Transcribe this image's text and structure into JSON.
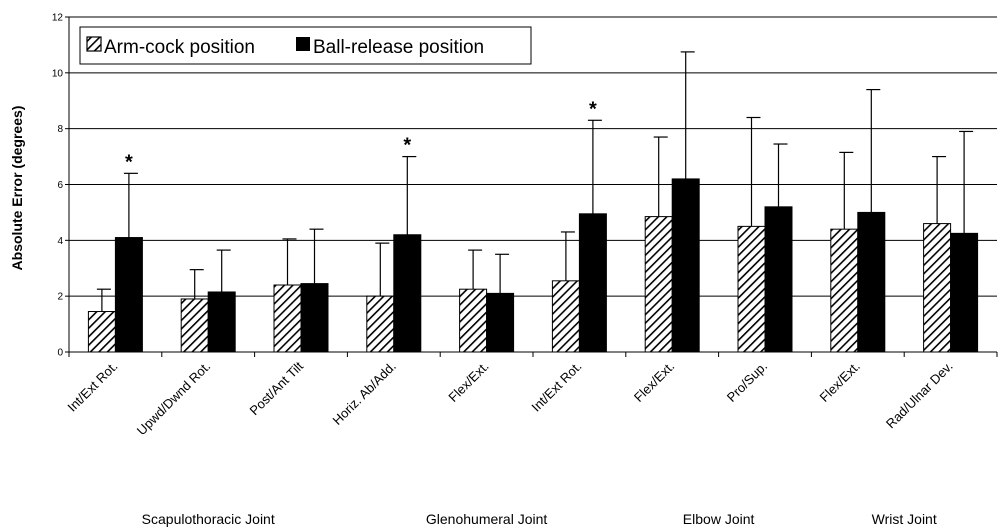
{
  "chart_data": {
    "type": "bar",
    "title": "",
    "xlabel": "",
    "ylabel": "Absolute Error (degrees)",
    "ylim": [
      0,
      12
    ],
    "yticks": [
      0,
      2,
      4,
      6,
      8,
      10,
      12
    ],
    "grid": true,
    "legend_position": "top-left",
    "categories": [
      "Int/Ext Rot.",
      "Upwd/Dwnd Rot.",
      "Post/Ant Tilt",
      "Horiz. Ab/Add.",
      "Flex/Ext.",
      "Int/Ext Rot.",
      "Flex/Ext.",
      "Pro/Sup.",
      "Flex/Ext.",
      "Rad/Ulnar Dev."
    ],
    "groups": [
      {
        "label": "Scapulothoracic Joint",
        "from": 0,
        "to": 2
      },
      {
        "label": "Glenohumeral Joint",
        "from": 3,
        "to": 5
      },
      {
        "label": "Elbow Joint",
        "from": 6,
        "to": 7
      },
      {
        "label": "Wrist Joint",
        "from": 8,
        "to": 9
      }
    ],
    "series": [
      {
        "name": "Arm-cock position",
        "pattern": "hatched",
        "color": "#000000",
        "values": [
          1.45,
          1.9,
          2.4,
          2.0,
          2.25,
          2.55,
          4.85,
          4.5,
          4.4,
          4.6
        ],
        "err_upper": [
          2.25,
          2.95,
          4.05,
          3.9,
          3.65,
          4.3,
          7.7,
          8.4,
          7.15,
          7.0
        ]
      },
      {
        "name": "Ball-release position",
        "pattern": "solid",
        "color": "#000000",
        "values": [
          4.1,
          2.15,
          2.45,
          4.2,
          2.1,
          4.95,
          6.2,
          5.2,
          5.0,
          4.25
        ],
        "err_upper": [
          6.4,
          3.65,
          4.4,
          7.0,
          3.5,
          8.3,
          10.75,
          7.45,
          9.4,
          7.9
        ]
      }
    ],
    "annotations": [
      {
        "text": "*",
        "category": 0,
        "series": 1
      },
      {
        "text": "*",
        "category": 3,
        "series": 1
      },
      {
        "text": "*",
        "category": 5,
        "series": 1
      }
    ]
  }
}
